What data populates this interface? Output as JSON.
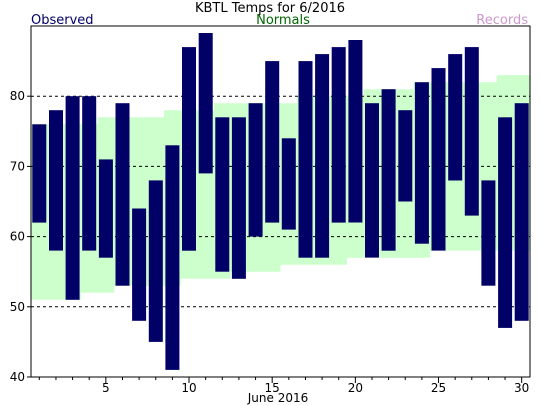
{
  "chart_data": {
    "type": "bar",
    "title": "KBTL Temps for 6/2016",
    "xlabel": "June 2016",
    "ylabel": "",
    "xlim": [
      0.5,
      30.5
    ],
    "ylim": [
      40,
      90
    ],
    "x_ticks": [
      5,
      10,
      15,
      20,
      25,
      30
    ],
    "y_ticks": [
      40,
      50,
      60,
      70,
      80
    ],
    "gridlines_y": [
      50,
      60,
      70,
      80
    ],
    "legend": {
      "observed": "Observed",
      "normals": "Normals",
      "records": "Records",
      "placement": "top"
    },
    "colors": {
      "observed": "#000066",
      "normals_fill": "#ccffcc",
      "normals_text": "#006600",
      "records_text": "#cc99cc",
      "grid": "#000000"
    },
    "days": [
      1,
      2,
      3,
      4,
      5,
      6,
      7,
      8,
      9,
      10,
      11,
      12,
      13,
      14,
      15,
      16,
      17,
      18,
      19,
      20,
      21,
      22,
      23,
      24,
      25,
      26,
      27,
      28,
      29,
      30
    ],
    "observed_high": [
      76,
      78,
      80,
      80,
      71,
      79,
      64,
      68,
      73,
      87,
      89,
      77,
      77,
      79,
      85,
      74,
      85,
      86,
      87,
      88,
      79,
      81,
      78,
      82,
      84,
      86,
      87,
      68,
      77,
      79
    ],
    "observed_low": [
      62,
      58,
      51,
      58,
      57,
      53,
      48,
      45,
      41,
      58,
      69,
      55,
      54,
      60,
      62,
      61,
      57,
      57,
      62,
      62,
      57,
      58,
      65,
      59,
      58,
      68,
      63,
      53,
      47,
      48
    ],
    "normal_high": [
      76,
      76,
      76,
      76,
      77,
      77,
      77,
      77,
      78,
      78,
      78,
      79,
      79,
      79,
      79,
      79,
      80,
      80,
      80,
      80,
      81,
      81,
      81,
      82,
      82,
      82,
      82,
      82,
      83,
      83
    ],
    "normal_low": [
      51,
      51,
      51,
      52,
      52,
      53,
      53,
      53,
      53,
      54,
      54,
      54,
      55,
      55,
      55,
      56,
      56,
      56,
      56,
      57,
      57,
      57,
      57,
      57,
      58,
      58,
      58,
      58,
      58,
      58
    ]
  }
}
